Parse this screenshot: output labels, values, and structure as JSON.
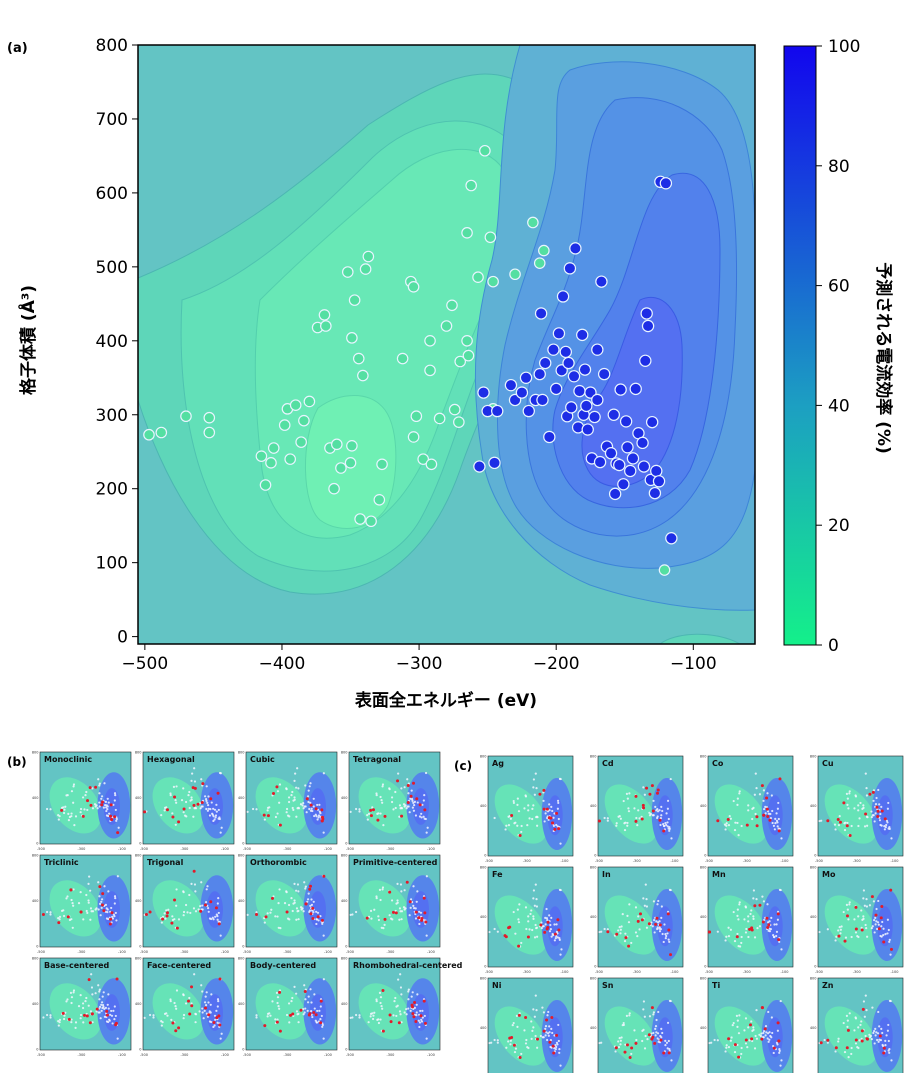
{
  "panel_labels": {
    "a": "(a)",
    "b": "(b)",
    "c": "(c)"
  },
  "colors": {
    "low": "#14f08a",
    "mid": "#1c9fc2",
    "high": "#1206ee",
    "point_low_fill": "#54dfa2",
    "point_high_fill": "#1d2de6",
    "point_stroke": "#e8f4ff",
    "small_point": "#e21b2b"
  },
  "chart_data": [
    {
      "panel": "(a)",
      "type": "scatter",
      "title": "",
      "xlabel": "表面全エネルギー (eV)",
      "ylabel": "格子体積 (Å³)",
      "xlim": [
        -505,
        -55
      ],
      "ylim": [
        -10,
        800
      ],
      "xticks": [
        -500,
        -400,
        -300,
        -200,
        -100
      ],
      "xtick_labels": [
        "−500",
        "−400",
        "−300",
        "−200",
        "−100"
      ],
      "yticks": [
        0,
        100,
        200,
        300,
        400,
        500,
        600,
        700,
        800
      ],
      "ytick_labels": [
        "0",
        "100",
        "200",
        "300",
        "400",
        "500",
        "600",
        "700",
        "800"
      ],
      "colorbar": {
        "label": "予測される電流効率 (%)",
        "range": [
          0,
          100
        ],
        "ticks": [
          0,
          20,
          40,
          60,
          80,
          100
        ],
        "tick_labels": [
          "0",
          "20",
          "40",
          "60",
          "80",
          "100"
        ]
      },
      "background": "filled contour of predicted efficiency",
      "grid": false,
      "points_low": [
        [
          -497,
          273
        ],
        [
          -488,
          276
        ],
        [
          -470,
          298
        ],
        [
          -453,
          296
        ],
        [
          -453,
          276
        ],
        [
          -415,
          244
        ],
        [
          -412,
          205
        ],
        [
          -408,
          235
        ],
        [
          -406,
          255
        ],
        [
          -398,
          286
        ],
        [
          -396,
          308
        ],
        [
          -394,
          240
        ],
        [
          -390,
          313
        ],
        [
          -386,
          263
        ],
        [
          -384,
          292
        ],
        [
          -380,
          318
        ],
        [
          -374,
          418
        ],
        [
          -369,
          435
        ],
        [
          -368,
          420
        ],
        [
          -365,
          255
        ],
        [
          -362,
          200
        ],
        [
          -360,
          260
        ],
        [
          -357,
          228
        ],
        [
          -352,
          493
        ],
        [
          -350,
          235
        ],
        [
          -349,
          258
        ],
        [
          -349,
          404
        ],
        [
          -347,
          455
        ],
        [
          -344,
          376
        ],
        [
          -343,
          159
        ],
        [
          -341,
          353
        ],
        [
          -339,
          497
        ],
        [
          -337,
          514
        ],
        [
          -335,
          156
        ],
        [
          -329,
          185
        ],
        [
          -327,
          233
        ],
        [
          -312,
          376
        ],
        [
          -306,
          480
        ],
        [
          -304,
          473
        ],
        [
          -304,
          270
        ],
        [
          -302,
          298
        ],
        [
          -297,
          240
        ],
        [
          -292,
          400
        ],
        [
          -292,
          360
        ],
        [
          -291,
          233
        ],
        [
          -285,
          295
        ],
        [
          -280,
          420
        ],
        [
          -276,
          448
        ],
        [
          -274,
          307
        ],
        [
          -271,
          290
        ],
        [
          -270,
          372
        ],
        [
          -265,
          546
        ],
        [
          -265,
          400
        ],
        [
          -264,
          380
        ],
        [
          -262,
          610
        ],
        [
          -257,
          486
        ],
        [
          -252,
          657
        ],
        [
          -248,
          540
        ],
        [
          -246,
          480
        ],
        [
          -246,
          308
        ],
        [
          -230,
          490
        ],
        [
          -217,
          560
        ],
        [
          -212,
          505
        ],
        [
          -209,
          522
        ],
        [
          -121,
          90
        ]
      ],
      "points_high": [
        [
          -256,
          230
        ],
        [
          -253,
          330
        ],
        [
          -250,
          305
        ],
        [
          -245,
          235
        ],
        [
          -243,
          305
        ],
        [
          -233,
          340
        ],
        [
          -230,
          320
        ],
        [
          -225,
          330
        ],
        [
          -222,
          350
        ],
        [
          -220,
          305
        ],
        [
          -215,
          320
        ],
        [
          -212,
          355
        ],
        [
          -211,
          437
        ],
        [
          -210,
          320
        ],
        [
          -208,
          370
        ],
        [
          -205,
          270
        ],
        [
          -202,
          388
        ],
        [
          -200,
          335
        ],
        [
          -198,
          410
        ],
        [
          -196,
          360
        ],
        [
          -195,
          460
        ],
        [
          -193,
          385
        ],
        [
          -192,
          298
        ],
        [
          -191,
          370
        ],
        [
          -190,
          498
        ],
        [
          -189,
          310
        ],
        [
          -187,
          352
        ],
        [
          -186,
          525
        ],
        [
          -184,
          283
        ],
        [
          -183,
          332
        ],
        [
          -181,
          408
        ],
        [
          -180,
          300
        ],
        [
          -179,
          361
        ],
        [
          -178,
          312
        ],
        [
          -177,
          280
        ],
        [
          -175,
          330
        ],
        [
          -174,
          241
        ],
        [
          -172,
          297
        ],
        [
          -170,
          388
        ],
        [
          -170,
          320
        ],
        [
          -168,
          236
        ],
        [
          -167,
          480
        ],
        [
          -165,
          355
        ],
        [
          -163,
          257
        ],
        [
          -160,
          248
        ],
        [
          -158,
          300
        ],
        [
          -157,
          193
        ],
        [
          -156,
          234
        ],
        [
          -154,
          232
        ],
        [
          -153,
          334
        ],
        [
          -151,
          206
        ],
        [
          -149,
          291
        ],
        [
          -148,
          256
        ],
        [
          -146,
          224
        ],
        [
          -144,
          241
        ],
        [
          -142,
          335
        ],
        [
          -140,
          275
        ],
        [
          -137,
          262
        ],
        [
          -136,
          230
        ],
        [
          -135,
          373
        ],
        [
          -134,
          437
        ],
        [
          -133,
          420
        ],
        [
          -131,
          212
        ],
        [
          -130,
          290
        ],
        [
          -128,
          194
        ],
        [
          -127,
          224
        ],
        [
          -125,
          210
        ],
        [
          -124,
          615
        ],
        [
          -120,
          613
        ],
        [
          -116,
          133
        ]
      ]
    },
    {
      "panel": "(b)",
      "type": "scatter",
      "title": "",
      "subplots": [
        "Monoclinic",
        "Hexagonal",
        "Cubic",
        "Tetragonal",
        "Triclinic",
        "Trigonal",
        "Orthorombic",
        "Primitive-centered",
        "Base-centered",
        "Face-centered",
        "Body-centered",
        "Rhombohedral-centered"
      ],
      "xticks": [
        -500,
        -400,
        -300,
        -200,
        -100
      ],
      "xtick_labels": [
        "-500",
        "-400",
        "-300",
        "-200",
        "-100"
      ],
      "yticks": [
        0,
        100,
        200,
        300,
        400,
        500,
        600,
        700,
        800
      ],
      "ytick_labels": [
        "0",
        "100",
        "200",
        "300",
        "400",
        "500",
        "600",
        "700",
        "800"
      ],
      "highlight_color": "#e21b2b"
    },
    {
      "panel": "(c)",
      "type": "scatter",
      "title": "",
      "subplots": [
        "Ag",
        "Cd",
        "Co",
        "Cu",
        "Fe",
        "In",
        "Mn",
        "Mo",
        "Ni",
        "Sn",
        "Ti",
        "Zn"
      ],
      "xticks": [
        -500,
        -400,
        -300,
        -200,
        -100
      ],
      "xtick_labels": [
        "-500",
        "-400",
        "-300",
        "-200",
        "-100"
      ],
      "yticks": [
        0,
        100,
        200,
        300,
        400,
        500,
        600,
        700,
        800
      ],
      "ytick_labels": [
        "0",
        "100",
        "200",
        "300",
        "400",
        "500",
        "600",
        "700",
        "800"
      ],
      "highlight_color": "#e21b2b"
    }
  ]
}
